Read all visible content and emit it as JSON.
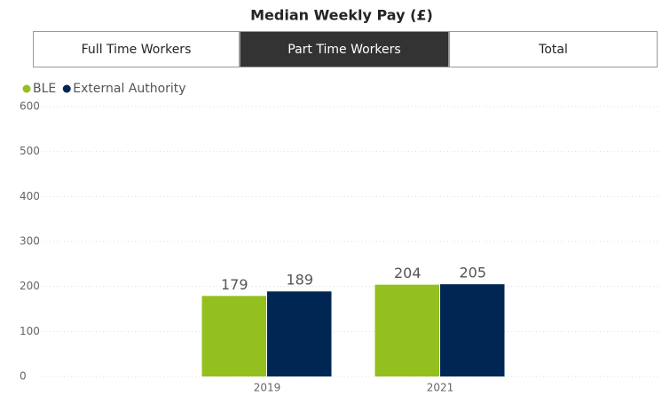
{
  "tabs": {
    "items": [
      "Full Time Workers",
      "Part Time Workers",
      "Total"
    ],
    "selected": 1
  },
  "chart_data": {
    "type": "bar",
    "title": "Median Weekly Pay (£)",
    "categories": [
      "2019",
      "2021"
    ],
    "series": [
      {
        "name": "BLE",
        "color": "#93c01f",
        "values": [
          179,
          204
        ]
      },
      {
        "name": "External Authority",
        "color": "#002753",
        "values": [
          189,
          205
        ]
      }
    ],
    "ylim": [
      0,
      600
    ],
    "yticks": [
      0,
      100,
      200,
      300,
      400,
      500,
      600
    ],
    "grid": true,
    "legend": "top-left"
  }
}
